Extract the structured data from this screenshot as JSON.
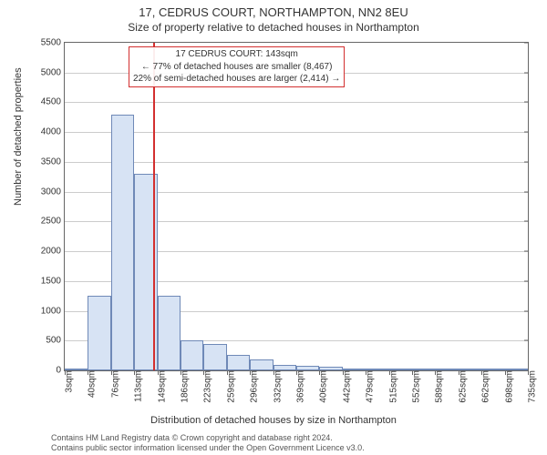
{
  "title": "17, CEDRUS COURT, NORTHAMPTON, NN2 8EU",
  "subtitle": "Size of property relative to detached houses in Northampton",
  "chart": {
    "type": "histogram",
    "background_color": "#ffffff",
    "grid_color": "#cccccc",
    "border_color": "#666666",
    "bar_fill": "#d7e3f4",
    "bar_border": "#6f89b7",
    "ylim": [
      0,
      5500
    ],
    "ytick_step": 500,
    "yticks": [
      0,
      500,
      1000,
      1500,
      2000,
      2500,
      3000,
      3500,
      4000,
      4500,
      5000,
      5500
    ],
    "xticks": [
      "3sqm",
      "40sqm",
      "76sqm",
      "113sqm",
      "149sqm",
      "186sqm",
      "223sqm",
      "259sqm",
      "296sqm",
      "332sqm",
      "369sqm",
      "406sqm",
      "442sqm",
      "479sqm",
      "515sqm",
      "552sqm",
      "589sqm",
      "625sqm",
      "662sqm",
      "698sqm",
      "735sqm"
    ],
    "bars": [
      20,
      1250,
      4300,
      3300,
      1250,
      500,
      450,
      260,
      180,
      90,
      80,
      60,
      30,
      10,
      8,
      7,
      6,
      5,
      5,
      4
    ],
    "reference_line": {
      "position_value": 143,
      "color": "#d32f2f"
    },
    "annotation": {
      "border_color": "#d32f2f",
      "line1": "17 CEDRUS COURT: 143sqm",
      "line2": "← 77% of detached houses are smaller (8,467)",
      "line3": "22% of semi-detached houses are larger (2,414) →"
    },
    "y_label": "Number of detached properties",
    "x_label": "Distribution of detached houses by size in Northampton",
    "tick_fontsize": 10,
    "label_fontsize": 11,
    "title_fontsize": 13
  },
  "footer": {
    "line1": "Contains HM Land Registry data © Crown copyright and database right 2024.",
    "line2": "Contains public sector information licensed under the Open Government Licence v3.0."
  }
}
